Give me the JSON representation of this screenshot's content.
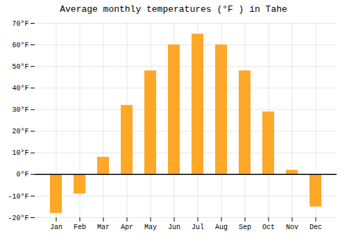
{
  "chart_data": {
    "type": "bar",
    "title": "Average monthly temperatures (°F ) in Tahe",
    "categories": [
      "Jan",
      "Feb",
      "Mar",
      "Apr",
      "May",
      "Jun",
      "Jul",
      "Aug",
      "Sep",
      "Oct",
      "Nov",
      "Dec"
    ],
    "values": [
      -18,
      -9,
      8,
      32,
      48,
      60,
      65,
      60,
      48,
      29,
      2,
      -15
    ],
    "color": "#FFA726",
    "ylim": [
      -20,
      70
    ],
    "yticks": [
      {
        "value": -20,
        "label": "-20°F"
      },
      {
        "value": -10,
        "label": "-10°F"
      },
      {
        "value": 0,
        "label": "0°F"
      },
      {
        "value": 10,
        "label": "10°F"
      },
      {
        "value": 20,
        "label": "20°F"
      },
      {
        "value": 30,
        "label": "30°F"
      },
      {
        "value": 40,
        "label": "40°F"
      },
      {
        "value": 50,
        "label": "50°F"
      },
      {
        "value": 60,
        "label": "60°F"
      },
      {
        "value": 70,
        "label": "70°F"
      }
    ],
    "grid": true
  }
}
